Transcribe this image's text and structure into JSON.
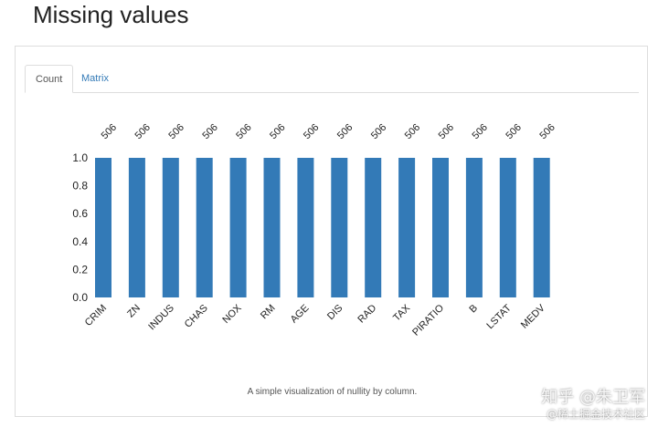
{
  "page": {
    "title": "Missing values"
  },
  "tabs": [
    {
      "label": "Count",
      "active": true
    },
    {
      "label": "Matrix",
      "active": false
    }
  ],
  "caption": "A simple visualization of nullity by column.",
  "watermark": {
    "line1": "知乎 @朱卫军",
    "line2": "@稀土掘金技术社区"
  },
  "colors": {
    "bar": "#337ab7",
    "link": "#337ab7"
  },
  "chart_data": {
    "type": "bar",
    "title": "",
    "xlabel": "",
    "ylabel": "",
    "categories": [
      "CRIM",
      "ZN",
      "INDUS",
      "CHAS",
      "NOX",
      "RM",
      "AGE",
      "DIS",
      "RAD",
      "TAX",
      "PIRATIO",
      "B",
      "LSTAT",
      "MEDV"
    ],
    "values": [
      1.0,
      1.0,
      1.0,
      1.0,
      1.0,
      1.0,
      1.0,
      1.0,
      1.0,
      1.0,
      1.0,
      1.0,
      1.0,
      1.0
    ],
    "counts": [
      "506",
      "506",
      "506",
      "506",
      "506",
      "506",
      "506",
      "506",
      "506",
      "506",
      "506",
      "506",
      "506",
      "506"
    ],
    "yticks": [
      "0.0",
      "0.2",
      "0.4",
      "0.6",
      "0.8",
      "1.0"
    ],
    "ylim": [
      0,
      1.0
    ],
    "grid": false
  }
}
